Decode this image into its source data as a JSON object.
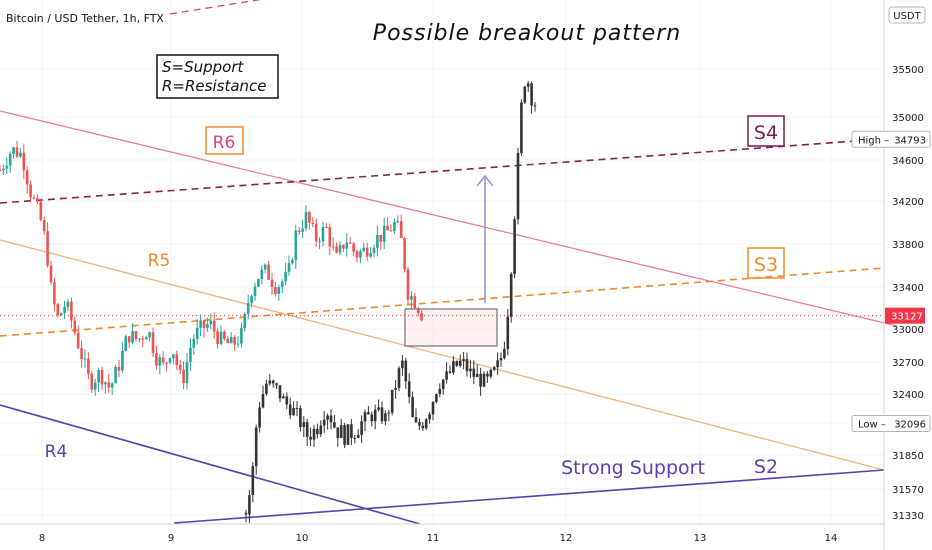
{
  "header": {
    "symbol": "Bitcoin / USD Tether, 1h, FTX",
    "currency_badge": "USDT"
  },
  "chart_data": {
    "type": "candlestick",
    "title": "Possible breakout pattern",
    "x_ticks": [
      "8",
      "9",
      "10",
      "11",
      "12",
      "13",
      "14"
    ],
    "y_ticks": [
      35500,
      35000,
      34600,
      34200,
      33800,
      33400,
      33000,
      32700,
      32400,
      32100,
      31850,
      31570,
      31330
    ],
    "ylim": [
      31280,
      35700
    ],
    "grid": true,
    "price_labels": [
      {
        "name": "High",
        "value": 34793,
        "display": "34793"
      },
      {
        "name": "Last",
        "value": 33127,
        "display": "33127",
        "color": "#f23645"
      },
      {
        "name": "Low",
        "value": 32096,
        "display": "32096"
      }
    ],
    "legend_box": [
      "S=Support",
      "R=Resistance"
    ],
    "annotations": [
      {
        "label": "R6",
        "color": "#e0446e",
        "boxed": true
      },
      {
        "label": "R5",
        "color": "#f08a2c",
        "boxed": false
      },
      {
        "label": "R4",
        "color": "#5b3fb0",
        "boxed": false
      },
      {
        "label": "S4",
        "color": "#7a1e4a",
        "boxed": true
      },
      {
        "label": "S3",
        "color": "#f08a2c",
        "boxed": true
      },
      {
        "label": "S2",
        "color": "#5b3fb0",
        "boxed": false
      },
      {
        "label": "Strong Support",
        "color": "#5b3fb0",
        "boxed": false
      }
    ],
    "lines": [
      {
        "name": "R6",
        "style": "solid",
        "color": "#e97ba0"
      },
      {
        "name": "R5",
        "style": "solid",
        "color": "#f6b07a"
      },
      {
        "name": "R4",
        "style": "solid",
        "color": "#5b3fb0"
      },
      {
        "name": "S4",
        "style": "dashed",
        "color": "#8b1f4d"
      },
      {
        "name": "S3",
        "style": "dashed",
        "color": "#f08a2c"
      },
      {
        "name": "S2",
        "style": "solid",
        "color": "#5b3fb0"
      }
    ],
    "candle_colors": {
      "up": "#26a69a",
      "down": "#ef5350",
      "annotated_segment": "#333333"
    }
  }
}
